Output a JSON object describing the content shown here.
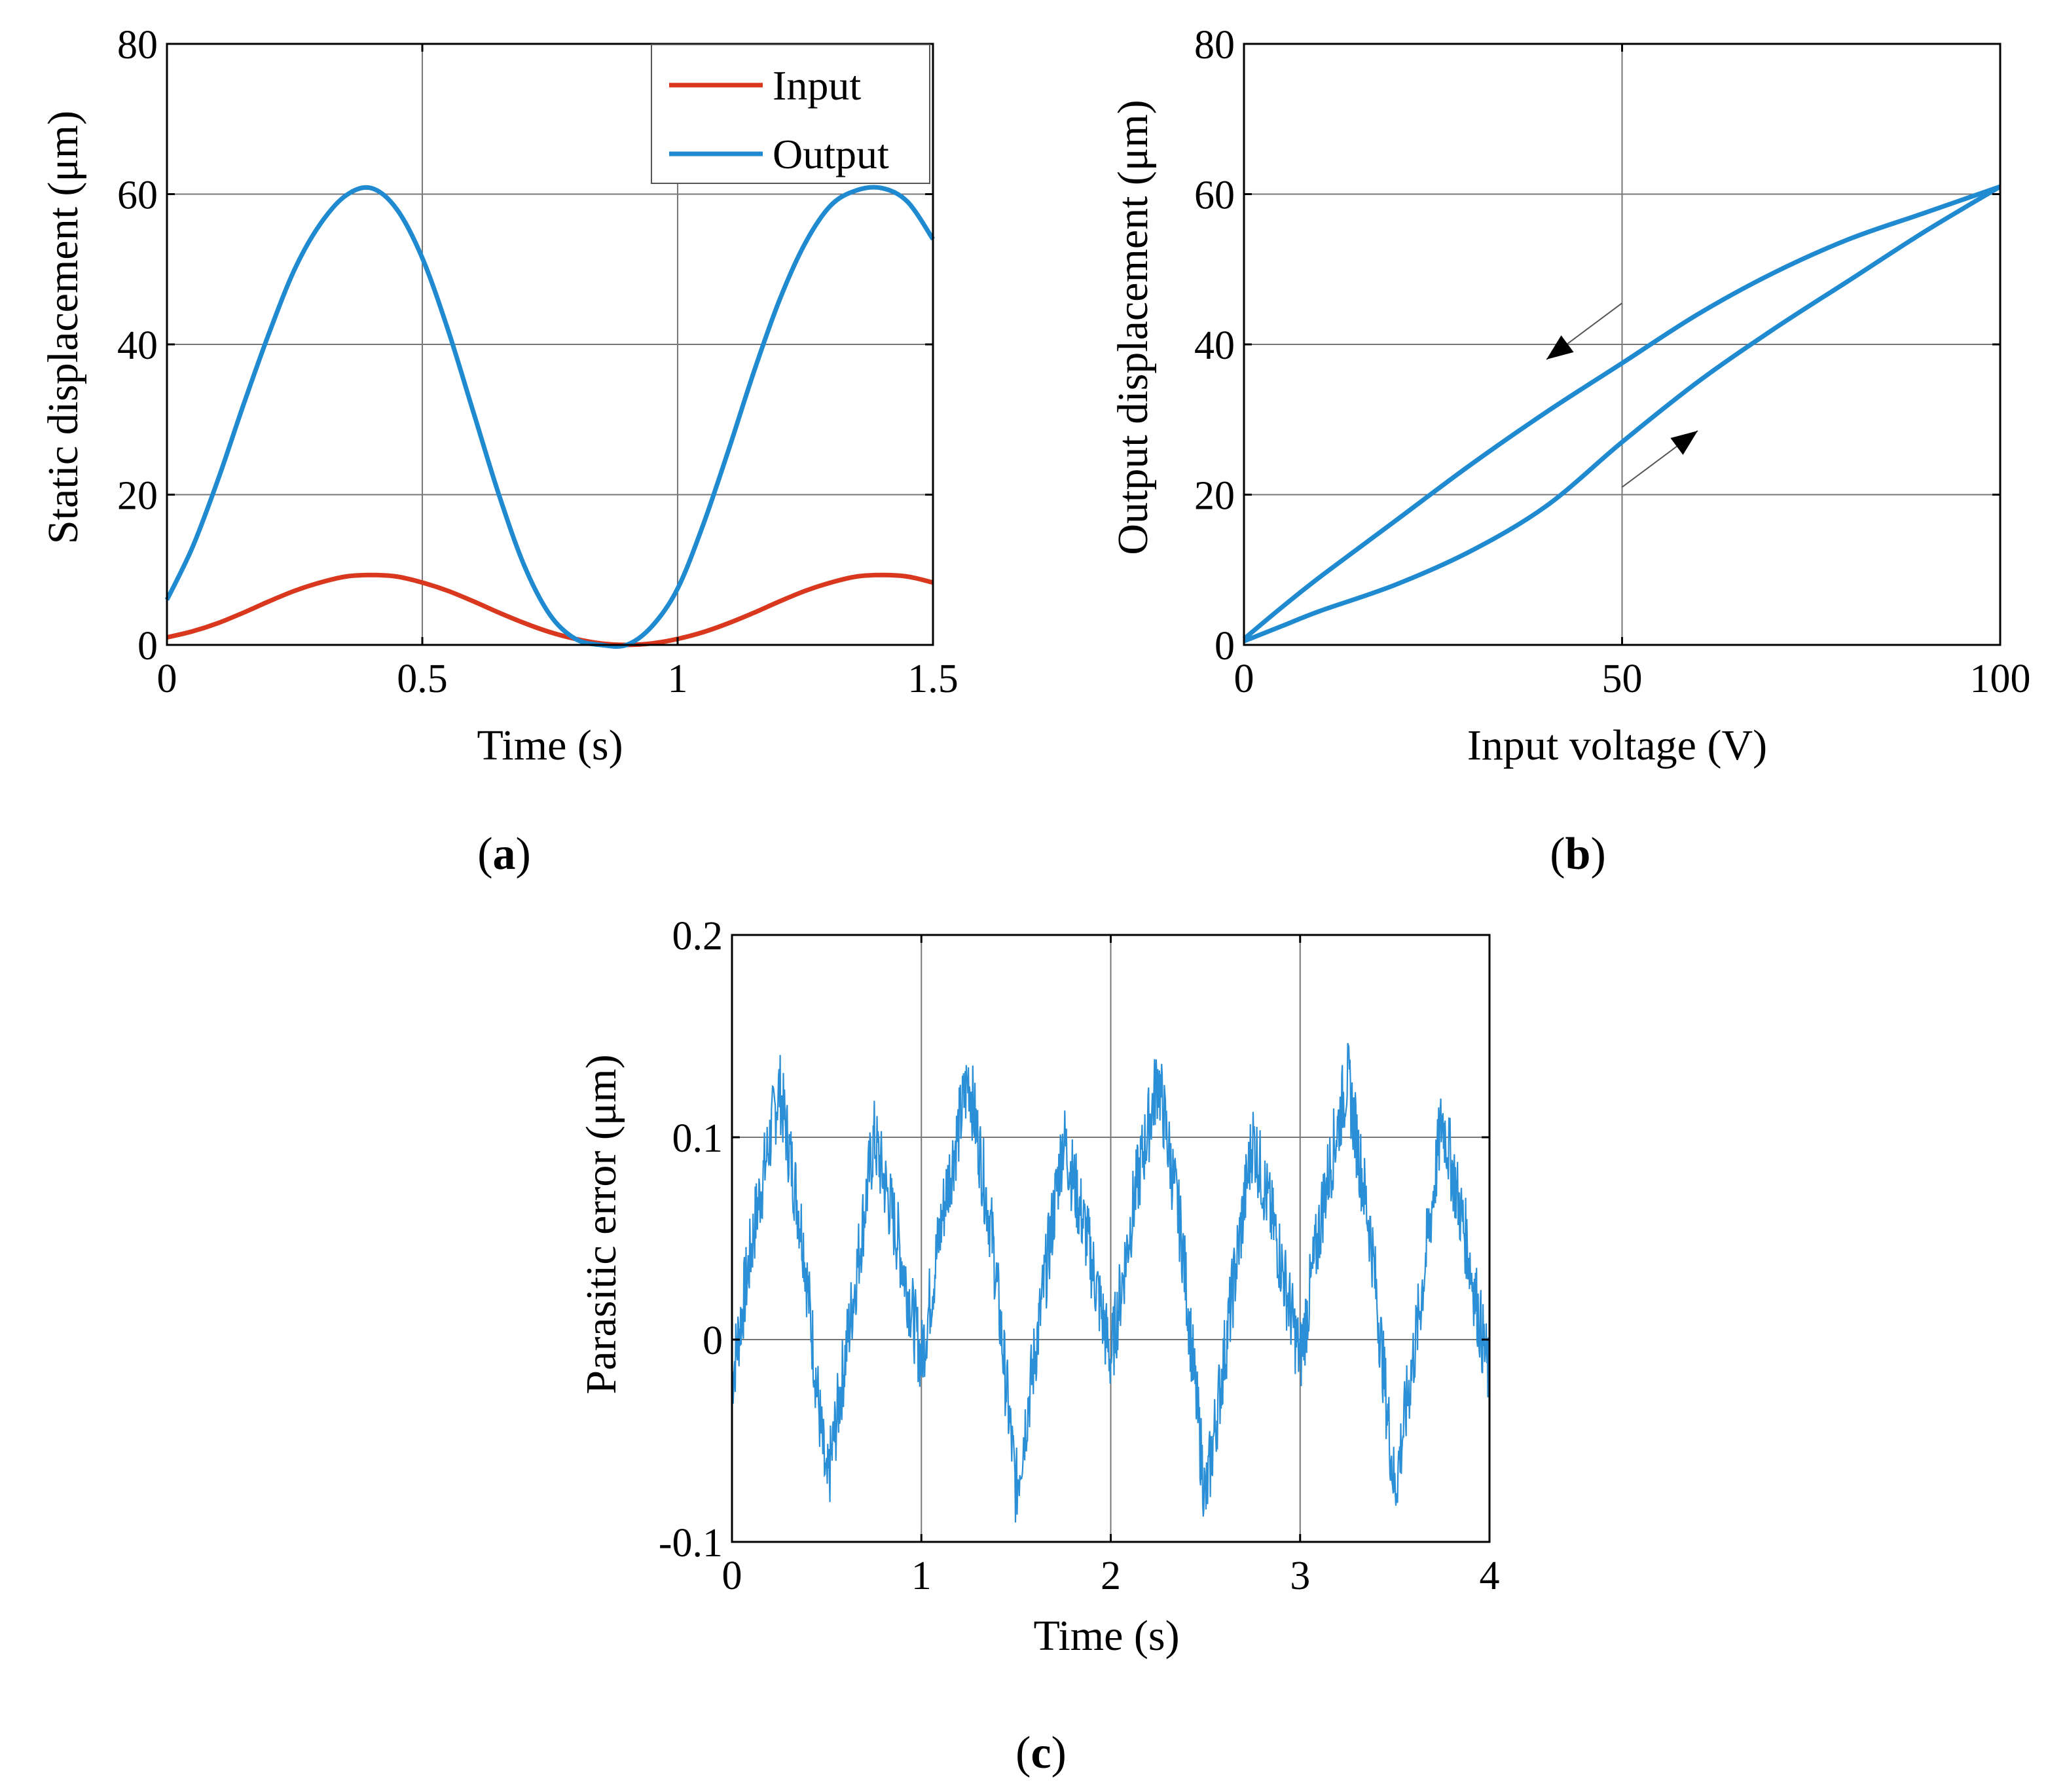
{
  "colors": {
    "input": "#d9381e",
    "output": "#1f8ad0",
    "parasitic": "#2a8fd6",
    "grid": "#777777",
    "axis": "#000000"
  },
  "chart_data": [
    {
      "id": "a",
      "type": "line",
      "caption": "a",
      "xlabel": "Time (s)",
      "ylabel": "Static displacement (μm)",
      "xlim": [
        0,
        1.5
      ],
      "ylim": [
        0,
        80
      ],
      "xticks": [
        0,
        0.5,
        1,
        1.5
      ],
      "xtick_labels": [
        "0",
        "0.5",
        "1",
        "1.5"
      ],
      "yticks": [
        0,
        20,
        40,
        60,
        80
      ],
      "ytick_labels": [
        "0",
        "20",
        "40",
        "60",
        "80"
      ],
      "grid": true,
      "legend": "top-right",
      "series": [
        {
          "name": "Input",
          "color": "#d9381e",
          "x": [
            0,
            0.05,
            0.1,
            0.15,
            0.2,
            0.25,
            0.3,
            0.35,
            0.4,
            0.45,
            0.5,
            0.55,
            0.6,
            0.65,
            0.7,
            0.75,
            0.8,
            0.85,
            0.9,
            0.95,
            1.0,
            1.05,
            1.1,
            1.15,
            1.2,
            1.25,
            1.3,
            1.35,
            1.4,
            1.45,
            1.5
          ],
          "y": [
            1.0,
            1.8,
            2.9,
            4.3,
            5.8,
            7.2,
            8.3,
            9.1,
            9.3,
            9.1,
            8.3,
            7.2,
            5.8,
            4.3,
            2.9,
            1.7,
            0.8,
            0.2,
            0.0,
            0.2,
            0.8,
            1.7,
            2.9,
            4.3,
            5.8,
            7.2,
            8.3,
            9.1,
            9.3,
            9.1,
            8.3
          ]
        },
        {
          "name": "Output",
          "color": "#1f8ad0",
          "x": [
            0,
            0.05,
            0.1,
            0.15,
            0.2,
            0.25,
            0.3,
            0.35,
            0.4,
            0.45,
            0.5,
            0.55,
            0.6,
            0.65,
            0.7,
            0.75,
            0.8,
            0.85,
            0.9,
            0.95,
            1.0,
            1.05,
            1.1,
            1.15,
            1.2,
            1.25,
            1.3,
            1.35,
            1.4,
            1.45,
            1.5
          ],
          "y": [
            6.0,
            13.0,
            22.0,
            32.0,
            41.5,
            50.0,
            56.0,
            59.8,
            60.8,
            58.0,
            51.5,
            42.0,
            31.0,
            20.0,
            10.5,
            4.0,
            0.8,
            0.0,
            0.0,
            2.5,
            7.5,
            16.0,
            26.0,
            36.5,
            46.0,
            53.5,
            58.5,
            60.5,
            60.8,
            59.0,
            54.0
          ]
        }
      ]
    },
    {
      "id": "b",
      "type": "line",
      "caption": "b",
      "xlabel": "Input voltage (V)",
      "ylabel": "Output displacement (μm)",
      "xlim": [
        0,
        100
      ],
      "ylim": [
        0,
        80
      ],
      "xticks": [
        0,
        50,
        100
      ],
      "xtick_labels": [
        "0",
        "50",
        "100"
      ],
      "yticks": [
        0,
        20,
        40,
        60,
        80
      ],
      "ytick_labels": [
        "0",
        "20",
        "40",
        "60",
        "80"
      ],
      "grid": true,
      "series": [
        {
          "color": "#1f8ad0",
          "x": [
            0,
            5,
            10,
            20,
            30,
            40,
            50,
            60,
            70,
            80,
            90,
            100
          ],
          "y": [
            0.5,
            2.5,
            4.5,
            8.0,
            12.5,
            18.5,
            27.0,
            35.0,
            42.0,
            48.5,
            55.0,
            61.0
          ]
        },
        {
          "color": "#1f8ad0",
          "x": [
            100,
            90,
            80,
            70,
            60,
            50,
            40,
            30,
            20,
            10,
            5,
            0
          ],
          "y": [
            61.0,
            57.5,
            54.0,
            49.5,
            44.0,
            37.5,
            31.0,
            24.0,
            16.5,
            9.0,
            5.0,
            0.8
          ]
        }
      ],
      "arrows": [
        {
          "from": [
            50,
            45.5
          ],
          "to": [
            40,
            38.0
          ]
        },
        {
          "from": [
            50,
            21.0
          ],
          "to": [
            60,
            28.5
          ]
        }
      ]
    },
    {
      "id": "c",
      "type": "line",
      "caption": "c",
      "xlabel": "Time (s)",
      "ylabel": "Parasitic error (μm)",
      "xlim": [
        0,
        4
      ],
      "ylim": [
        -0.1,
        0.2
      ],
      "xticks": [
        0,
        1,
        2,
        3,
        4
      ],
      "xtick_labels": [
        "0",
        "1",
        "2",
        "3",
        "4"
      ],
      "yticks": [
        -0.1,
        0,
        0.1,
        0.2
      ],
      "ytick_labels": [
        "-0.1",
        "0",
        "0.1",
        "0.2"
      ],
      "grid": true,
      "series": [
        {
          "color": "#2a8fd6",
          "x": [
            0,
            0.125,
            0.25,
            0.375,
            0.5,
            0.625,
            0.75,
            0.875,
            1.0,
            1.125,
            1.25,
            1.375,
            1.5,
            1.625,
            1.75,
            1.875,
            2.0,
            2.125,
            2.25,
            2.375,
            2.5,
            2.625,
            2.75,
            2.875,
            3.0,
            3.125,
            3.25,
            3.375,
            3.5,
            3.625,
            3.75,
            3.875,
            4.0
          ],
          "y": [
            -0.02,
            0.06,
            0.125,
            0.05,
            -0.075,
            0.01,
            0.1,
            0.05,
            -0.01,
            0.07,
            0.13,
            0.05,
            -0.075,
            0.01,
            0.1,
            0.05,
            -0.01,
            0.07,
            0.13,
            0.05,
            -0.08,
            0.01,
            0.1,
            0.05,
            -0.01,
            0.07,
            0.13,
            0.05,
            -0.075,
            0.01,
            0.11,
            0.05,
            -0.02
          ]
        }
      ]
    }
  ]
}
